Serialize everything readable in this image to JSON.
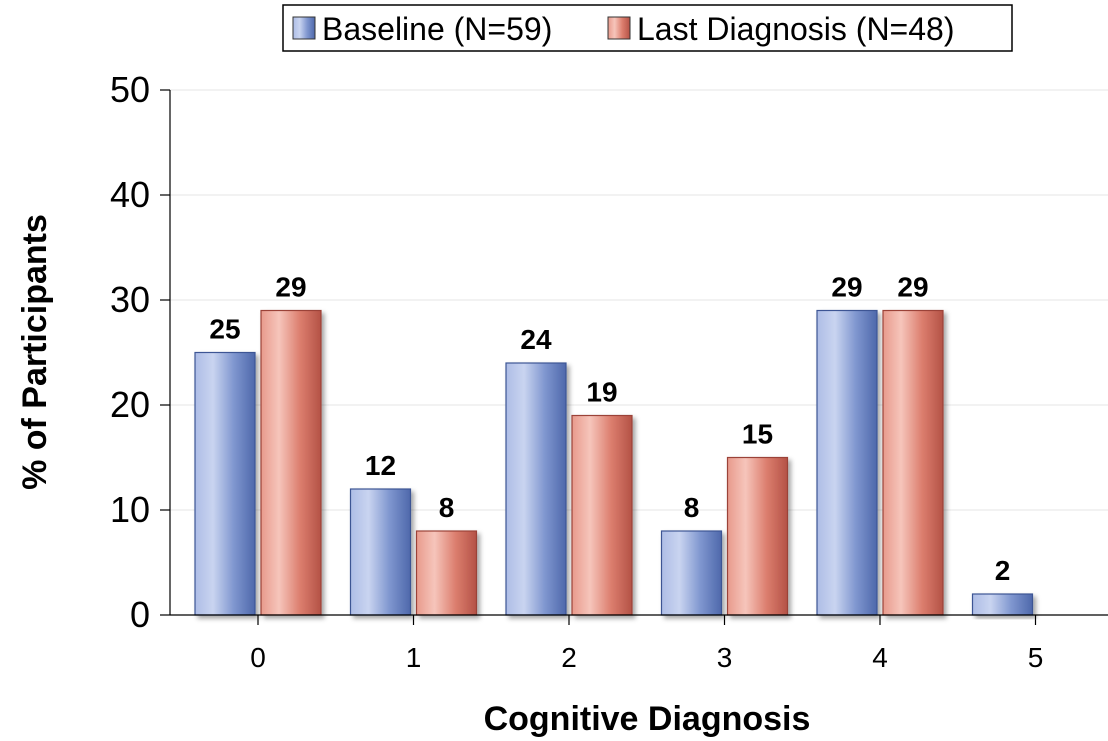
{
  "chart_data": {
    "type": "bar",
    "title": "",
    "xlabel": "Cognitive Diagnosis",
    "ylabel": "% of Participants",
    "categories": [
      "0",
      "1",
      "2",
      "3",
      "4",
      "5"
    ],
    "series": [
      {
        "name": "Baseline (N=59)",
        "values": [
          25,
          12,
          24,
          8,
          29,
          2
        ]
      },
      {
        "name": "Last Diagnosis (N=48)",
        "values": [
          29,
          8,
          19,
          15,
          29,
          null
        ]
      }
    ],
    "ylim": [
      0,
      50
    ],
    "yticks": [
      "0",
      "10",
      "20",
      "30",
      "40",
      "50"
    ],
    "grid": true,
    "legend_position": "top",
    "colors": {
      "baseline_light": "#c8d3ef",
      "baseline_mid": "#8097cf",
      "baseline_dark": "#4f6aad",
      "last_light": "#f6c2b8",
      "last_mid": "#de8272",
      "last_dark": "#b8564a"
    }
  }
}
